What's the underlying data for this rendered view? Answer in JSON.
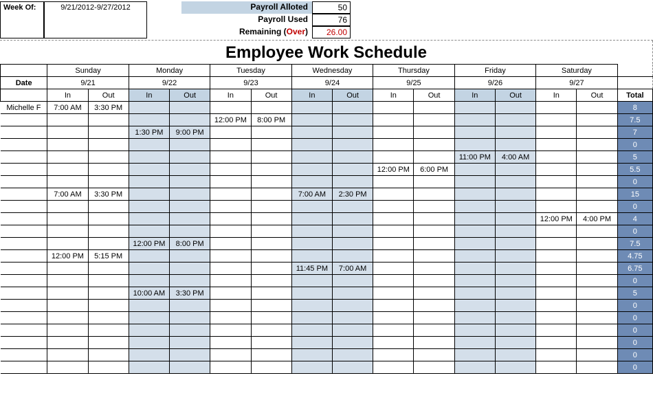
{
  "header": {
    "week_of_label": "Week Of:",
    "week_of_value": "9/21/2012-9/27/2012",
    "payroll_alloted_label": "Payroll Alloted",
    "payroll_alloted_value": "50",
    "payroll_used_label": "Payroll Used",
    "payroll_used_value": "76",
    "remaining_label_prefix": "Remaining (",
    "remaining_label_over": "Over",
    "remaining_label_suffix": ")",
    "remaining_value": "26.00"
  },
  "title": "Employee Work Schedule",
  "date_label": "Date",
  "total_label": "Total",
  "days": [
    {
      "name": "Sunday",
      "date": "9/21",
      "shaded": false
    },
    {
      "name": "Monday",
      "date": "9/22",
      "shaded": true
    },
    {
      "name": "Tuesday",
      "date": "9/23",
      "shaded": false
    },
    {
      "name": "Wednesday",
      "date": "9/24",
      "shaded": true
    },
    {
      "name": "Thursday",
      "date": "9/25",
      "shaded": false
    },
    {
      "name": "Friday",
      "date": "9/26",
      "shaded": true
    },
    {
      "name": "Saturday",
      "date": "9/27",
      "shaded": false
    }
  ],
  "in_label": "In",
  "out_label": "Out",
  "rows": [
    {
      "name": "Michelle F",
      "cells": [
        "7:00 AM",
        "3:30 PM",
        "",
        "",
        "",
        "",
        "",
        "",
        "",
        "",
        "",
        "",
        "",
        ""
      ],
      "total": "8"
    },
    {
      "name": "",
      "cells": [
        "",
        "",
        "",
        "",
        "12:00 PM",
        "8:00 PM",
        "",
        "",
        "",
        "",
        "",
        "",
        "",
        ""
      ],
      "total": "7.5"
    },
    {
      "name": "",
      "cells": [
        "",
        "",
        "1:30 PM",
        "9:00 PM",
        "",
        "",
        "",
        "",
        "",
        "",
        "",
        "",
        "",
        ""
      ],
      "total": "7"
    },
    {
      "name": "",
      "cells": [
        "",
        "",
        "",
        "",
        "",
        "",
        "",
        "",
        "",
        "",
        "",
        "",
        "",
        ""
      ],
      "total": "0"
    },
    {
      "name": "",
      "cells": [
        "",
        "",
        "",
        "",
        "",
        "",
        "",
        "",
        "",
        "",
        "11:00 PM",
        "4:00 AM",
        "",
        ""
      ],
      "total": "5"
    },
    {
      "name": "",
      "cells": [
        "",
        "",
        "",
        "",
        "",
        "",
        "",
        "",
        "12:00 PM",
        "6:00 PM",
        "",
        "",
        "",
        ""
      ],
      "total": "5.5"
    },
    {
      "name": "",
      "cells": [
        "",
        "",
        "",
        "",
        "",
        "",
        "",
        "",
        "",
        "",
        "",
        "",
        "",
        ""
      ],
      "total": "0"
    },
    {
      "name": "",
      "cells": [
        "7:00 AM",
        "3:30 PM",
        "",
        "",
        "",
        "",
        "7:00 AM",
        "2:30 PM",
        "",
        "",
        "",
        "",
        "",
        ""
      ],
      "total": "15"
    },
    {
      "name": "",
      "cells": [
        "",
        "",
        "",
        "",
        "",
        "",
        "",
        "",
        "",
        "",
        "",
        "",
        "",
        ""
      ],
      "total": "0"
    },
    {
      "name": "",
      "cells": [
        "",
        "",
        "",
        "",
        "",
        "",
        "",
        "",
        "",
        "",
        "",
        "",
        "12:00 PM",
        "4:00 PM"
      ],
      "total": "4"
    },
    {
      "name": "",
      "cells": [
        "",
        "",
        "",
        "",
        "",
        "",
        "",
        "",
        "",
        "",
        "",
        "",
        "",
        ""
      ],
      "total": "0"
    },
    {
      "name": "",
      "cells": [
        "",
        "",
        "12:00 PM",
        "8:00 PM",
        "",
        "",
        "",
        "",
        "",
        "",
        "",
        "",
        "",
        ""
      ],
      "total": "7.5"
    },
    {
      "name": "",
      "cells": [
        "12:00 PM",
        "5:15 PM",
        "",
        "",
        "",
        "",
        "",
        "",
        "",
        "",
        "",
        "",
        "",
        ""
      ],
      "total": "4.75"
    },
    {
      "name": "",
      "cells": [
        "",
        "",
        "",
        "",
        "",
        "",
        "11:45 PM",
        "7:00 AM",
        "",
        "",
        "",
        "",
        "",
        ""
      ],
      "total": "6.75"
    },
    {
      "name": "",
      "cells": [
        "",
        "",
        "",
        "",
        "",
        "",
        "",
        "",
        "",
        "",
        "",
        "",
        "",
        ""
      ],
      "total": "0"
    },
    {
      "name": "",
      "cells": [
        "",
        "",
        "10:00 AM",
        "3:30 PM",
        "",
        "",
        "",
        "",
        "",
        "",
        "",
        "",
        "",
        ""
      ],
      "total": "5"
    },
    {
      "name": "",
      "cells": [
        "",
        "",
        "",
        "",
        "",
        "",
        "",
        "",
        "",
        "",
        "",
        "",
        "",
        ""
      ],
      "total": "0"
    },
    {
      "name": "",
      "cells": [
        "",
        "",
        "",
        "",
        "",
        "",
        "",
        "",
        "",
        "",
        "",
        "",
        "",
        ""
      ],
      "total": "0"
    },
    {
      "name": "",
      "cells": [
        "",
        "",
        "",
        "",
        "",
        "",
        "",
        "",
        "",
        "",
        "",
        "",
        "",
        ""
      ],
      "total": "0"
    },
    {
      "name": "",
      "cells": [
        "",
        "",
        "",
        "",
        "",
        "",
        "",
        "",
        "",
        "",
        "",
        "",
        "",
        ""
      ],
      "total": "0"
    },
    {
      "name": "",
      "cells": [
        "",
        "",
        "",
        "",
        "",
        "",
        "",
        "",
        "",
        "",
        "",
        "",
        "",
        ""
      ],
      "total": "0"
    },
    {
      "name": "",
      "cells": [
        "",
        "",
        "",
        "",
        "",
        "",
        "",
        "",
        "",
        "",
        "",
        "",
        "",
        ""
      ],
      "total": "0"
    }
  ],
  "colors": {
    "shaded_header": "#c3d4e3",
    "shaded_cell": "#d4dfea",
    "total_bg": "#6e8bb5",
    "over_text": "#c00000"
  }
}
